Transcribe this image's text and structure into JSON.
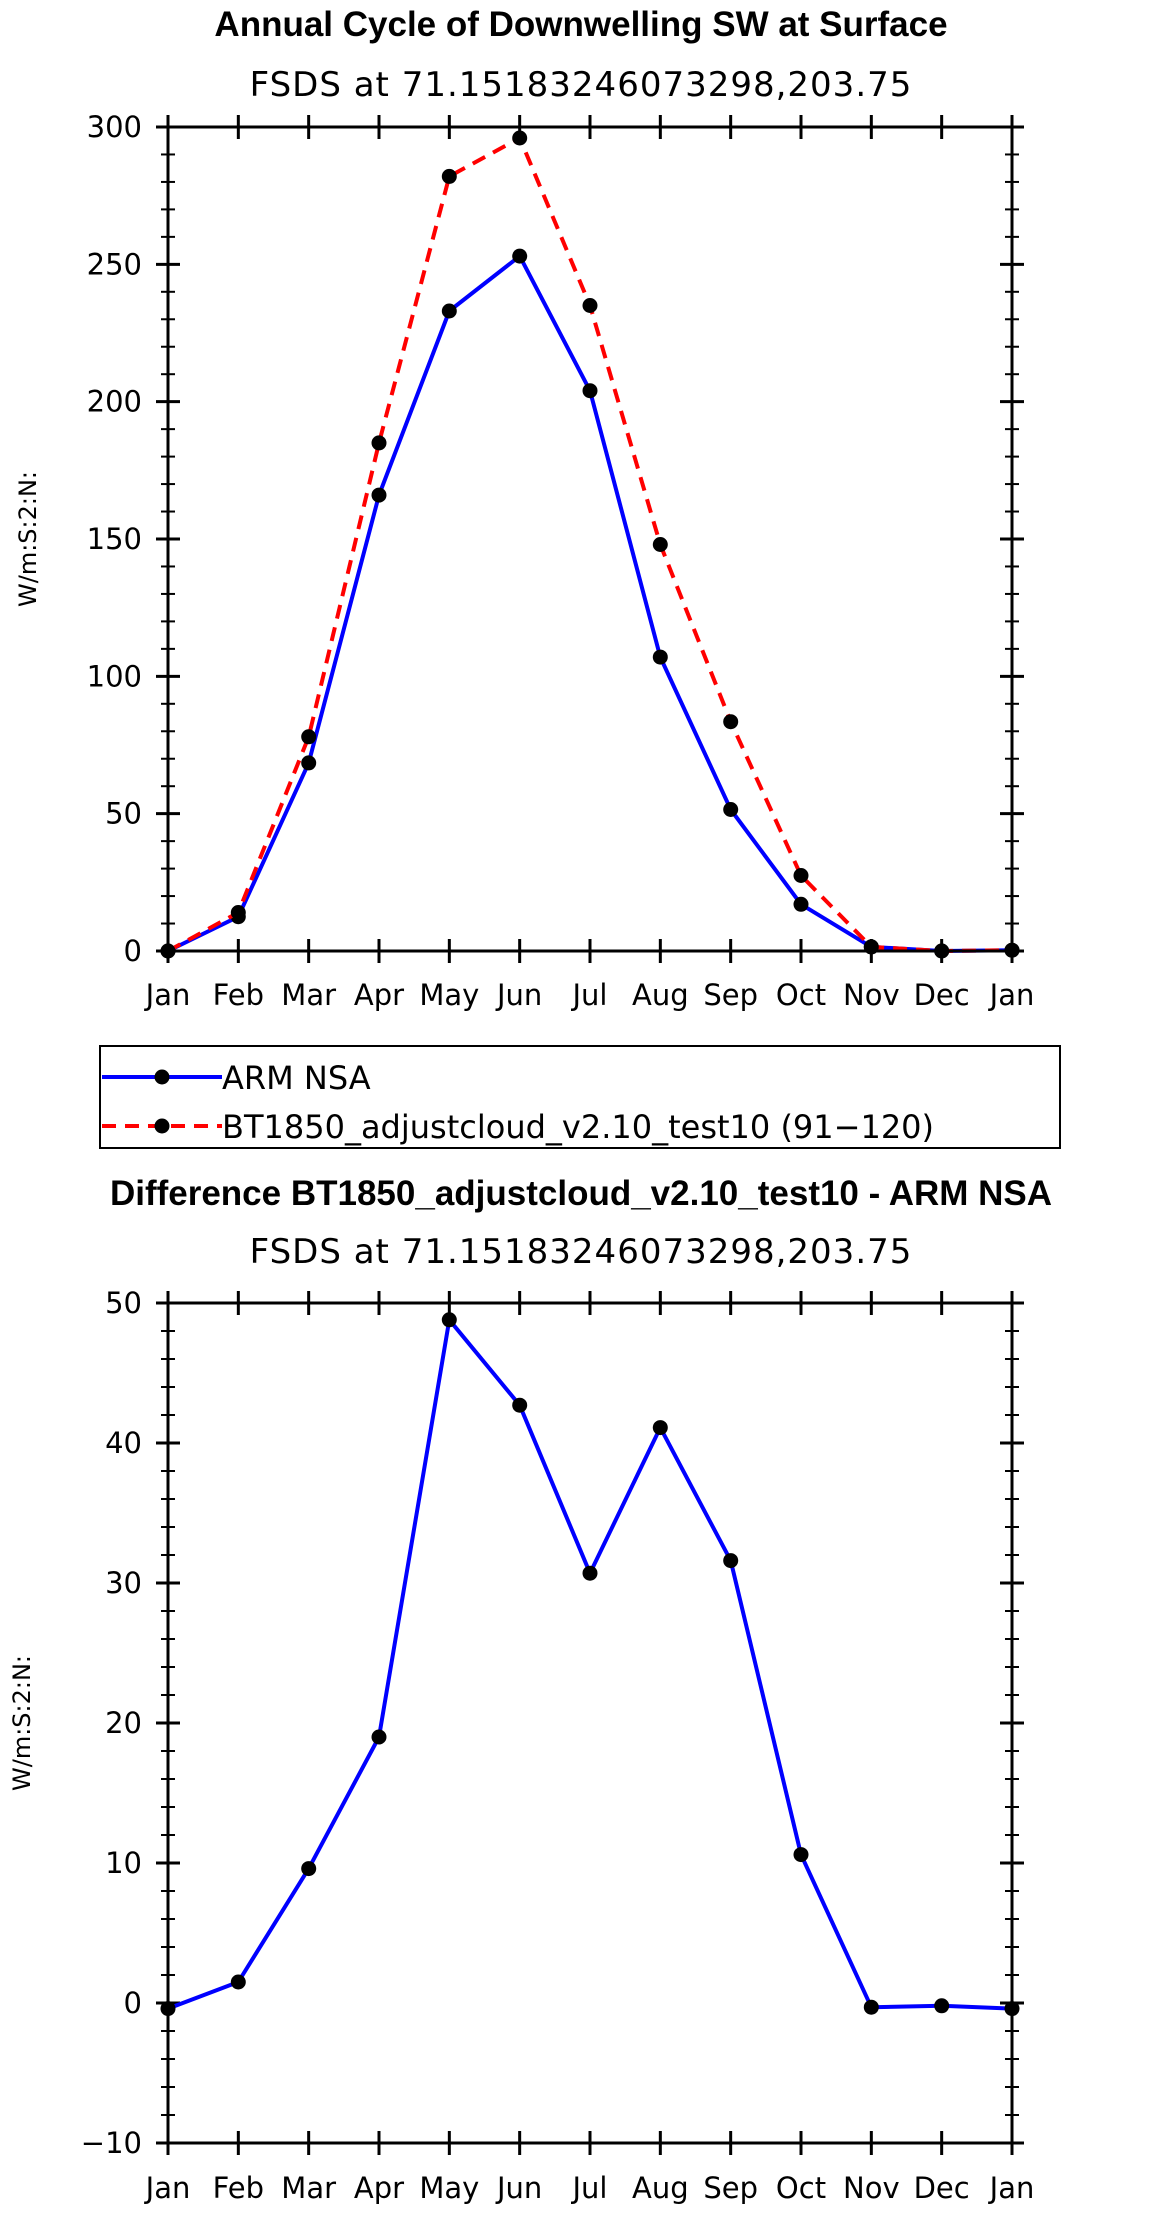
{
  "chart_data": [
    {
      "type": "line",
      "title": "Annual Cycle of Downwelling SW at Surface",
      "subtitle": "FSDS at 71.15183246073298,203.75",
      "xlabel": "",
      "ylabel": "W/m:S:2:N:",
      "categories": [
        "Jan",
        "Feb",
        "Mar",
        "Apr",
        "May",
        "Jun",
        "Jul",
        "Aug",
        "Sep",
        "Oct",
        "Nov",
        "Dec",
        "Jan"
      ],
      "ylim": [
        0,
        300
      ],
      "yticks": [
        0,
        50,
        100,
        150,
        200,
        250,
        300
      ],
      "series": [
        {
          "name": "ARM NSA",
          "color": "#0000ff",
          "style": "solid",
          "values": [
            0,
            12.5,
            68.5,
            166,
            233,
            253,
            204,
            107,
            51.5,
            17,
            1.5,
            0,
            0.3
          ]
        },
        {
          "name": "BT1850_adjustcloud_v2.10_test10 (91−120)",
          "color": "#ff0000",
          "style": "dashed",
          "values": [
            0,
            14,
            78,
            185,
            282,
            296,
            235,
            148,
            83.5,
            27.5,
            1.5,
            0,
            0.3
          ]
        }
      ],
      "legend": {
        "position": "below",
        "entries": [
          "ARM NSA",
          "BT1850_adjustcloud_v2.10_test10 (91−120)"
        ]
      }
    },
    {
      "type": "line",
      "title": "Difference BT1850_adjustcloud_v2.10_test10 - ARM NSA",
      "subtitle": "FSDS at 71.15183246073298,203.75",
      "xlabel": "",
      "ylabel": "W/m:S:2:N:",
      "categories": [
        "Jan",
        "Feb",
        "Mar",
        "Apr",
        "May",
        "Jun",
        "Jul",
        "Aug",
        "Sep",
        "Oct",
        "Nov",
        "Dec",
        "Jan"
      ],
      "ylim": [
        -10,
        50
      ],
      "yticks": [
        -10,
        0,
        10,
        20,
        30,
        40,
        50
      ],
      "series": [
        {
          "name": "Difference",
          "color": "#0000ff",
          "style": "solid",
          "values": [
            -0.4,
            1.5,
            9.6,
            19,
            48.8,
            42.7,
            30.7,
            41.1,
            31.6,
            10.6,
            -0.3,
            -0.2,
            -0.4
          ]
        }
      ]
    }
  ]
}
